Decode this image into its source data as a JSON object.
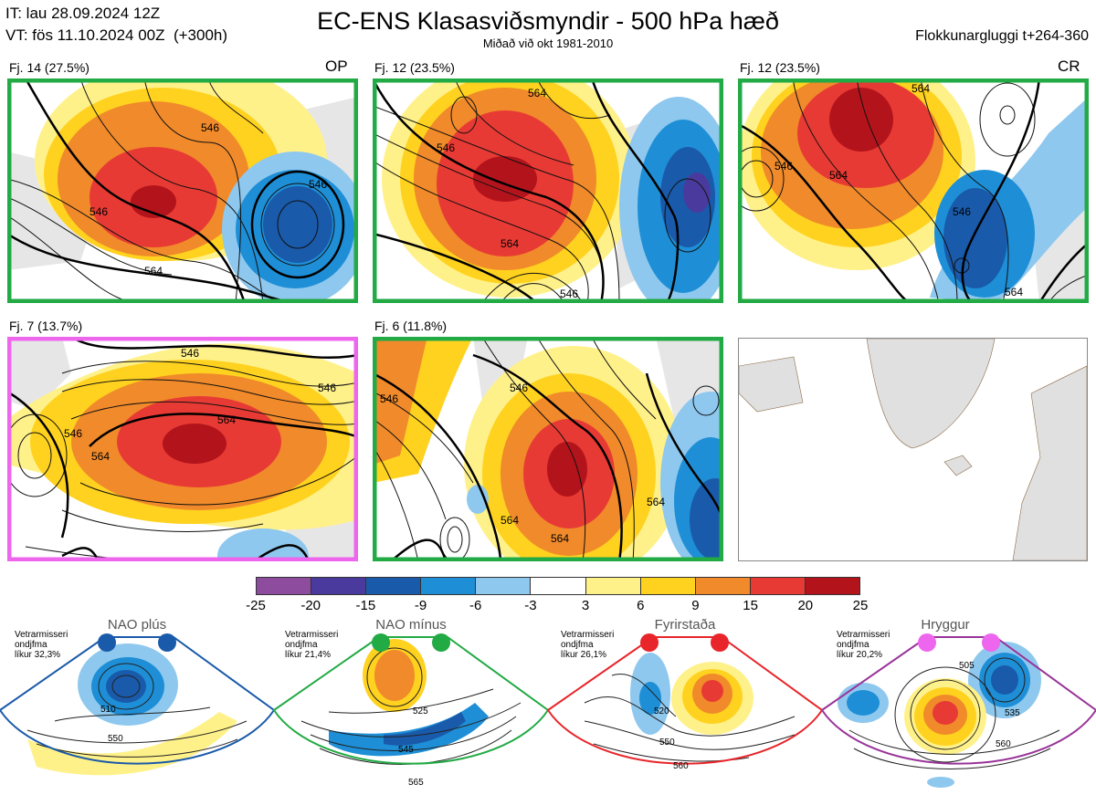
{
  "header": {
    "it_line": "IT: lau 28.09.2024 12Z",
    "vt_line": "VT: fös 11.10.2024 00Z  (+300h)",
    "title": "EC-ENS Klasasviðsmyndir - 500 hPa hæð",
    "subtitle": "Miðað við okt 1981-2010",
    "window": "Flokkunargluggi t+264-360"
  },
  "clusters": [
    {
      "label": "Fj. 14 (27.5%)",
      "tag": "OP",
      "frame_color": "#22aa44",
      "contour_labels": [
        "546",
        "546",
        "546",
        "564"
      ]
    },
    {
      "label": "Fj. 12 (23.5%)",
      "tag": "",
      "frame_color": "#22aa44",
      "contour_labels": [
        "546",
        "564",
        "564",
        "546"
      ]
    },
    {
      "label": "Fj. 12 (23.5%)",
      "tag": "CR",
      "frame_color": "#22aa44",
      "contour_labels": [
        "546",
        "564",
        "564",
        "546",
        "564"
      ]
    },
    {
      "label": "Fj. 7 (13.7%)",
      "tag": "",
      "frame_color": "#ee66ee",
      "contour_labels": [
        "546",
        "546",
        "564",
        "564",
        "546"
      ]
    },
    {
      "label": "Fj. 6 (11.8%)",
      "tag": "",
      "frame_color": "#22aa44",
      "contour_labels": [
        "546",
        "546",
        "564",
        "564",
        "564"
      ]
    }
  ],
  "colorbar": {
    "colors": [
      "#8d4c9e",
      "#4b3a9e",
      "#1a5aaa",
      "#1e8fd6",
      "#8ec8ee",
      "#ffffff",
      "#fff18a",
      "#ffd21f",
      "#f08a2a",
      "#e83a34",
      "#b3141c"
    ],
    "ticks": [
      "-25",
      "-20",
      "-15",
      "-9",
      "-6",
      "-3",
      "3",
      "6",
      "9",
      "15",
      "20",
      "25"
    ]
  },
  "regimes": [
    {
      "name": "NAO plús",
      "note": "Vetrarmisseri\nondjfma\nlíkur 32,3%",
      "color": "#1a5aaa",
      "contour_labels": [
        "510",
        "550"
      ]
    },
    {
      "name": "NAO mínus",
      "note": "Vetrarmisseri\nondjfma\nlíkur 21,4%",
      "color": "#22aa44",
      "contour_labels": [
        "525",
        "545",
        "565"
      ]
    },
    {
      "name": "Fyrirstaða",
      "note": "Vetrarmisseri\nondjfma\nlíkur 26,1%",
      "color": "#e8252a",
      "contour_labels": [
        "520",
        "550",
        "560"
      ]
    },
    {
      "name": "Hryggur",
      "note": "Vetrarmisseri\nondjfma\nlíkur 20,2%",
      "color": "#ee66ee",
      "contour_labels": [
        "505",
        "535",
        "560"
      ]
    }
  ]
}
